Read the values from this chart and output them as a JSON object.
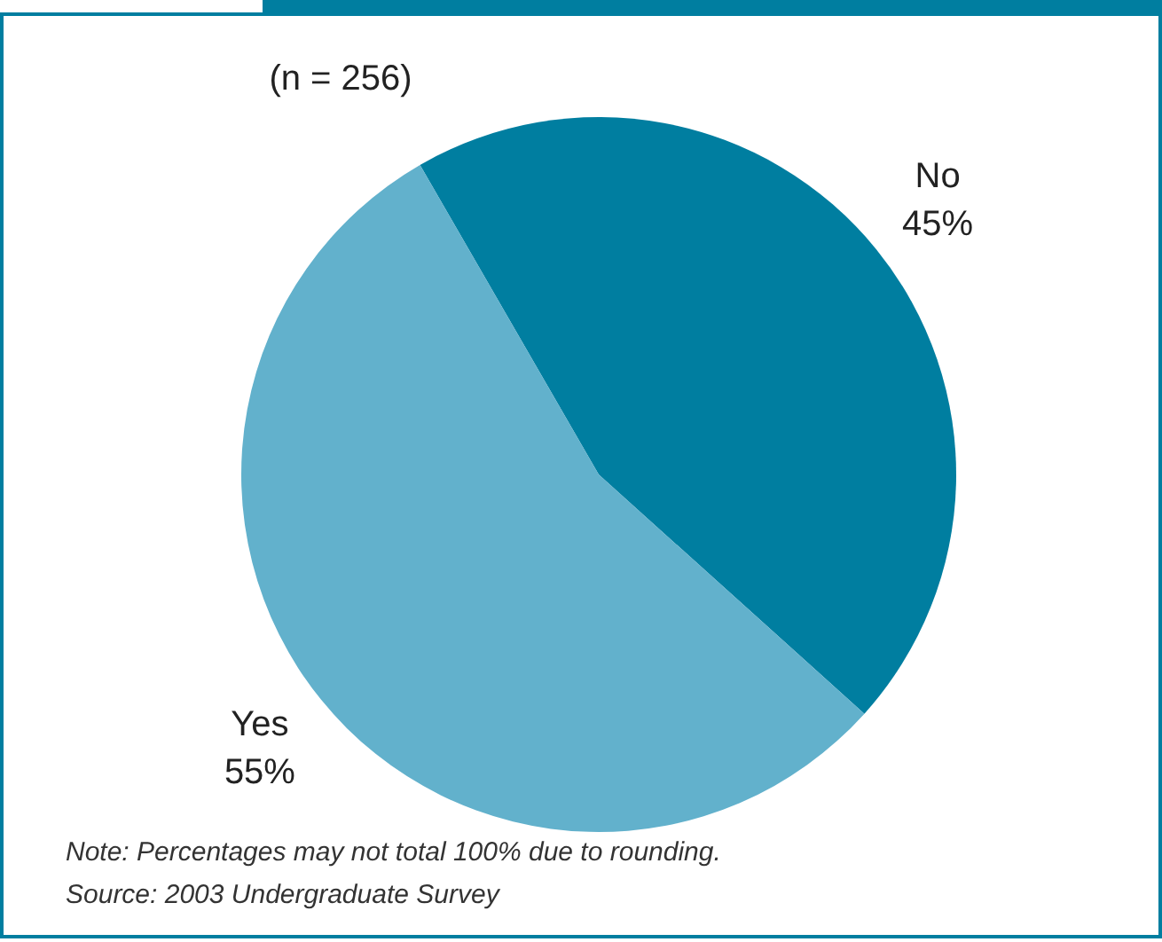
{
  "chart_data": {
    "type": "pie",
    "subtitle": "(n = 256)",
    "categories": [
      "No",
      "Yes"
    ],
    "values": [
      45,
      55
    ],
    "colors": [
      "#007ea0",
      "#62b1cc"
    ],
    "value_labels": [
      "45%",
      "55%"
    ],
    "annotations": [
      "Note: Percentages may not total 100% due to rounding.",
      "Source: 2003 Undergraduate Survey"
    ]
  }
}
